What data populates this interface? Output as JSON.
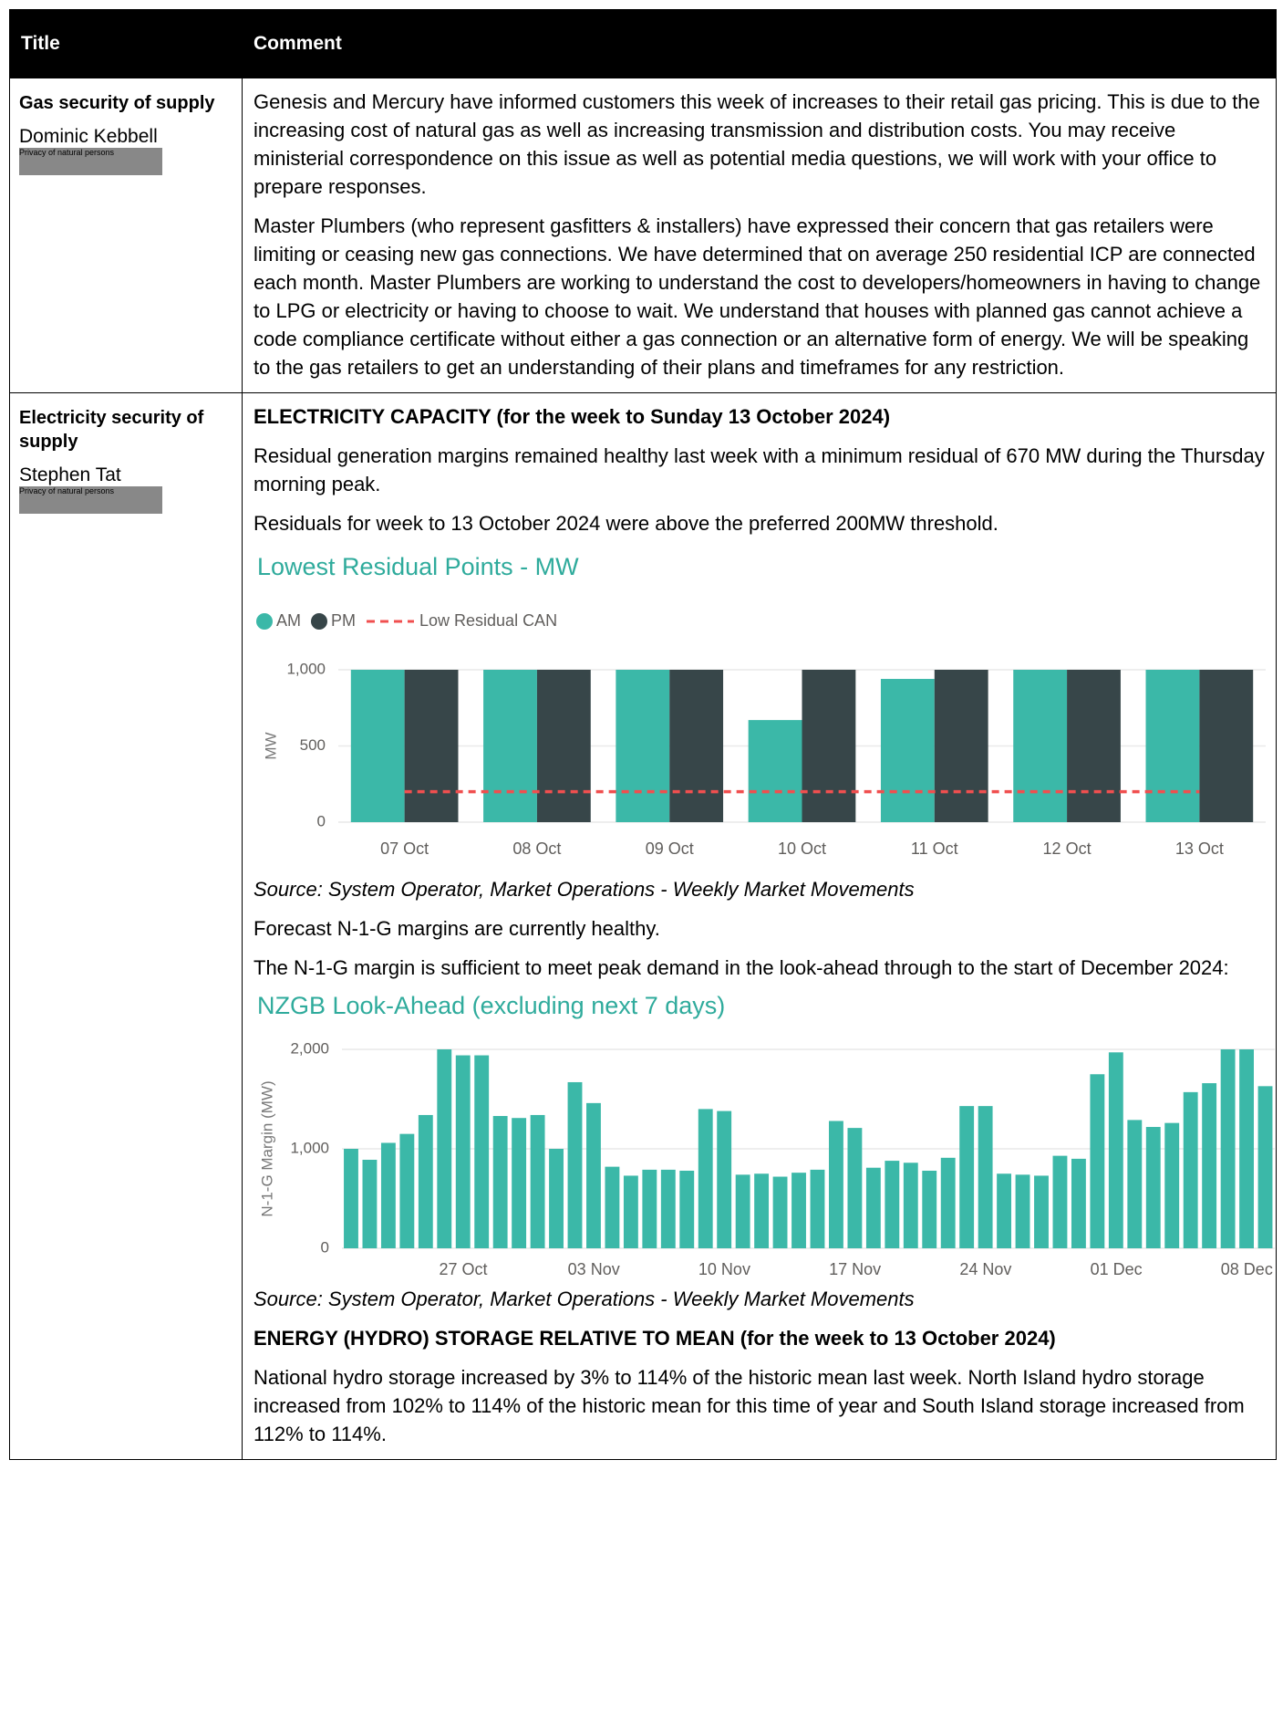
{
  "table": {
    "header": [
      "Title",
      "Comment"
    ],
    "rows": [
      {
        "title": "Gas security of supply",
        "person": "Dominic Kebbell",
        "redaction": "Privacy of natural persons",
        "paragraphs": [
          "Genesis and Mercury have informed customers this week of increases to their retail gas pricing. This is due to the increasing cost of natural gas as well as increasing transmission and distribution costs. You may receive ministerial correspondence on this issue as well as potential media questions, we will work with your office to prepare responses.",
          "Master Plumbers (who represent gasfitters & installers) have expressed their concern that gas retailers were limiting or ceasing new gas connections. We have determined that on average 250 residential ICP are connected each month. Master Plumbers are working to understand the cost to developers/homeowners in having to change to LPG or electricity or having to choose to wait. We understand that houses with planned gas cannot achieve a code compliance certificate without either a gas connection or an alternative form of energy. We will be speaking to the gas retailers to get an understanding of their plans and timeframes for any restriction."
        ]
      },
      {
        "title": "Electricity security of supply",
        "person": "Stephen Tat",
        "redaction": "Privacy of natural persons",
        "capacity_heading": "ELECTRICITY CAPACITY (for the week to Sunday 13 October 2024)",
        "capacity_paragraphs": [
          "Residual generation margins remained healthy last week with a minimum residual of 670 MW during the Thursday morning peak.",
          "Residuals for week to 13 October 2024 were above the preferred 200MW threshold."
        ],
        "capacity_source": "Source: System Operator, Market Operations - Weekly Market Movements",
        "margin_paragraphs": [
          "Forecast N-1-G margins are currently healthy.",
          "The N-1-G margin is sufficient to meet peak demand in the look-ahead through to the start of December 2024:"
        ],
        "margin_source": "Source: System Operator, Market Operations - Weekly Market Movements",
        "storage_heading": "ENERGY (HYDRO) STORAGE RELATIVE TO MEAN (for the week to 13 October 2024)",
        "storage_paragraphs": [
          "National hydro storage increased by 3% to 114% of the historic mean last week. North Island hydro storage increased from 102% to 114% of the historic mean for this time of year and South Island storage increased from 112% to 114%."
        ]
      }
    ]
  },
  "chart_data": [
    {
      "type": "bar",
      "title": "Lowest Residual Points - MW",
      "y_label": "MW",
      "categories": [
        "07 Oct",
        "08 Oct",
        "09 Oct",
        "10 Oct",
        "11 Oct",
        "12 Oct",
        "13 Oct"
      ],
      "series": [
        {
          "name": "AM",
          "color": "#3bb8a8",
          "values": [
            1000,
            1000,
            1000,
            670,
            940,
            1000,
            1000
          ]
        },
        {
          "name": "PM",
          "color": "#374649",
          "values": [
            1000,
            1000,
            1000,
            1000,
            1000,
            1000,
            1000
          ]
        },
        {
          "name": "Low Residual CAN",
          "type": "line",
          "style": "dashed",
          "color": "#f04f4f",
          "values": [
            200,
            200,
            200,
            200,
            200,
            200,
            200
          ]
        }
      ],
      "ylim": [
        0,
        1000
      ],
      "yticks": [
        0,
        500,
        {
          "value": 1000,
          "label": "1,000"
        }
      ],
      "grid": true,
      "legend": "top-left"
    },
    {
      "type": "bar",
      "title": "NZGB Look-Ahead (excluding next 7 days)",
      "y_label": "N-1-G Margin (MW)",
      "categories": [
        null,
        null,
        null,
        null,
        null,
        null,
        "27 Oct",
        null,
        null,
        null,
        null,
        null,
        null,
        "03 Nov",
        null,
        null,
        null,
        null,
        null,
        null,
        "10 Nov",
        null,
        null,
        null,
        null,
        null,
        null,
        "17 Nov",
        null,
        null,
        null,
        null,
        null,
        null,
        "24 Nov",
        null,
        null,
        null,
        null,
        null,
        null,
        "01 Dec",
        null,
        null,
        null,
        null,
        null,
        null,
        "08 Dec",
        null
      ],
      "series": [
        {
          "color": "#3bb8a8",
          "values": [
            1000,
            890,
            1060,
            1150,
            1340,
            2000,
            1940,
            1940,
            1330,
            1310,
            1340,
            1000,
            1670,
            1460,
            820,
            730,
            790,
            790,
            780,
            1400,
            1380,
            740,
            750,
            720,
            760,
            790,
            1280,
            1210,
            810,
            880,
            860,
            780,
            910,
            1430,
            1430,
            750,
            740,
            730,
            930,
            900,
            1750,
            1970,
            1290,
            1220,
            1260,
            1570,
            1660,
            2000,
            2000,
            1630
          ]
        }
      ],
      "ylim": [
        0,
        2000
      ],
      "yticks": [
        0,
        {
          "value": 1000,
          "label": "1,000"
        },
        {
          "value": 2000,
          "label": "2,000"
        }
      ],
      "grid": true
    }
  ]
}
